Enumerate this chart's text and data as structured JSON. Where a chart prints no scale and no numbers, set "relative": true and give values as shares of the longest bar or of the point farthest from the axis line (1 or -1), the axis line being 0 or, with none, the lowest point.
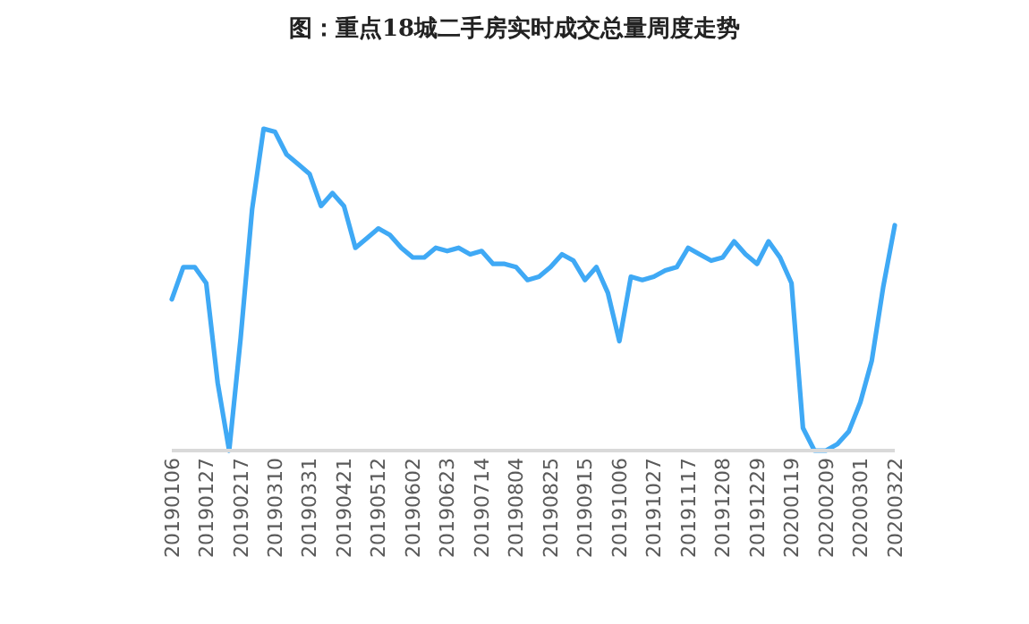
{
  "chart_data": {
    "type": "line",
    "title": "图：重点18城二手房实时成交总量周度走势",
    "relative": true,
    "categories": [
      "20190106",
      null,
      null,
      "20190127",
      null,
      null,
      "20190217",
      null,
      null,
      "20190310",
      null,
      null,
      "20190331",
      null,
      null,
      "20190421",
      null,
      null,
      "20190512",
      null,
      null,
      "20190602",
      null,
      null,
      "20190623",
      null,
      null,
      "20190714",
      null,
      null,
      "20190804",
      null,
      null,
      "20190825",
      null,
      null,
      "20190915",
      null,
      null,
      "20191006",
      null,
      null,
      "20191027",
      null,
      null,
      "20191117",
      null,
      null,
      "20191208",
      null,
      null,
      "20191229",
      null,
      null,
      "20200119",
      null,
      null,
      "20200209",
      null,
      null,
      "20200301",
      null,
      null,
      "20200322"
    ],
    "series": [
      {
        "color": "#3fa9f5",
        "values": [
          0.47,
          0.57,
          0.57,
          0.52,
          0.21,
          0,
          0.35,
          0.75,
          1,
          0.99,
          0.92,
          0.89,
          0.86,
          0.76,
          0.8,
          0.76,
          0.63,
          0.66,
          0.69,
          0.67,
          0.63,
          0.6,
          0.6,
          0.63,
          0.62,
          0.63,
          0.61,
          0.62,
          0.58,
          0.58,
          0.57,
          0.53,
          0.54,
          0.57,
          0.61,
          0.59,
          0.53,
          0.57,
          0.49,
          0.34,
          0.54,
          0.53,
          0.54,
          0.56,
          0.57,
          0.63,
          0.61,
          0.59,
          0.6,
          0.65,
          0.61,
          0.58,
          0.65,
          0.6,
          0.52,
          0.07,
          0,
          0,
          0.02,
          0.06,
          0.15,
          0.28,
          0.51,
          0.7
        ]
      }
    ]
  }
}
